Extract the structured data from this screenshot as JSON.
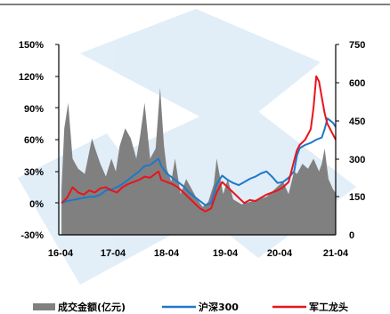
{
  "chart_data": {
    "type": "line",
    "title": "",
    "x_ticks": [
      "16-04",
      "17-04",
      "18-04",
      "19-04",
      "20-04",
      "21-04"
    ],
    "y_left": {
      "ticks": [
        "150%",
        "120%",
        "90%",
        "60%",
        "30%",
        "0%",
        "-30%"
      ],
      "range": [
        -30,
        150
      ],
      "unit": "%"
    },
    "y_right": {
      "ticks": [
        "750",
        "600",
        "450",
        "300",
        "150",
        "0"
      ],
      "range": [
        0,
        750
      ]
    },
    "grid": false,
    "legend_position": "bottom",
    "series": [
      {
        "name": "成交金额(亿元)",
        "kind": "area",
        "axis": "right",
        "color": "#808080",
        "x": [
          2016.3,
          2016.35,
          2016.42,
          2016.5,
          2016.6,
          2016.72,
          2016.85,
          2016.92,
          2017.0,
          2017.1,
          2017.2,
          2017.28,
          2017.35,
          2017.45,
          2017.55,
          2017.65,
          2017.72,
          2017.8,
          2017.9,
          2018.0,
          2018.08,
          2018.15,
          2018.2,
          2018.28,
          2018.35,
          2018.45,
          2018.55,
          2018.65,
          2018.75,
          2018.85,
          2018.95,
          2019.05,
          2019.1,
          2019.15,
          2019.22,
          2019.3,
          2019.4,
          2019.55,
          2019.7,
          2019.85,
          2020.0,
          2020.1,
          2020.2,
          2020.3,
          2020.4,
          2020.5,
          2020.55,
          2020.65,
          2020.75,
          2020.85,
          2020.95,
          2021.0,
          2021.05,
          2021.12,
          2021.2,
          2021.3
        ],
        "values": [
          180,
          420,
          520,
          300,
          260,
          240,
          380,
          330,
          280,
          230,
          300,
          250,
          350,
          420,
          380,
          300,
          390,
          520,
          300,
          340,
          580,
          350,
          260,
          210,
          300,
          160,
          220,
          180,
          140,
          110,
          130,
          200,
          300,
          240,
          160,
          220,
          140,
          120,
          130,
          140,
          150,
          170,
          190,
          210,
          160,
          250,
          240,
          280,
          260,
          300,
          250,
          280,
          340,
          220,
          180,
          150
        ]
      },
      {
        "name": "沪深300",
        "kind": "line",
        "axis": "left",
        "color": "#1f78c8",
        "x": [
          2016.3,
          2016.4,
          2016.5,
          2016.6,
          2016.7,
          2016.8,
          2016.9,
          2017.0,
          2017.1,
          2017.2,
          2017.3,
          2017.4,
          2017.5,
          2017.6,
          2017.7,
          2017.8,
          2017.9,
          2018.0,
          2018.05,
          2018.1,
          2018.2,
          2018.3,
          2018.4,
          2018.5,
          2018.6,
          2018.7,
          2018.8,
          2018.9,
          2019.0,
          2019.1,
          2019.2,
          2019.3,
          2019.4,
          2019.5,
          2019.6,
          2019.7,
          2019.8,
          2019.9,
          2020.0,
          2020.1,
          2020.2,
          2020.3,
          2020.4,
          2020.5,
          2020.55,
          2020.6,
          2020.7,
          2020.8,
          2020.9,
          2021.0,
          2021.05,
          2021.1,
          2021.15,
          2021.2,
          2021.25,
          2021.3
        ],
        "values": [
          0,
          2,
          3,
          4,
          5,
          6,
          6,
          8,
          12,
          13,
          15,
          18,
          22,
          26,
          30,
          35,
          36,
          40,
          42,
          35,
          28,
          24,
          20,
          16,
          10,
          6,
          2,
          -2,
          0,
          18,
          26,
          22,
          19,
          17,
          20,
          23,
          25,
          28,
          30,
          25,
          19,
          20,
          24,
          30,
          45,
          52,
          55,
          57,
          60,
          62,
          70,
          80,
          78,
          76,
          72,
          70
        ]
      },
      {
        "name": "军工龙头",
        "kind": "line",
        "axis": "left",
        "color": "#e8141c",
        "x": [
          2016.3,
          2016.4,
          2016.5,
          2016.6,
          2016.7,
          2016.8,
          2016.9,
          2017.0,
          2017.1,
          2017.2,
          2017.3,
          2017.4,
          2017.5,
          2017.6,
          2017.7,
          2017.8,
          2017.9,
          2018.0,
          2018.05,
          2018.1,
          2018.2,
          2018.3,
          2018.4,
          2018.5,
          2018.6,
          2018.7,
          2018.8,
          2018.9,
          2019.0,
          2019.1,
          2019.2,
          2019.3,
          2019.4,
          2019.5,
          2019.6,
          2019.7,
          2019.8,
          2019.9,
          2020.0,
          2020.1,
          2020.2,
          2020.3,
          2020.4,
          2020.5,
          2020.55,
          2020.6,
          2020.7,
          2020.8,
          2020.85,
          2020.9,
          2020.95,
          2021.0,
          2021.05,
          2021.1,
          2021.15,
          2021.2,
          2021.25,
          2021.3
        ],
        "values": [
          0,
          5,
          15,
          10,
          8,
          12,
          10,
          14,
          15,
          12,
          10,
          15,
          18,
          20,
          22,
          25,
          24,
          28,
          30,
          22,
          20,
          18,
          15,
          10,
          5,
          0,
          -5,
          -8,
          -5,
          10,
          20,
          15,
          10,
          5,
          0,
          3,
          2,
          5,
          8,
          10,
          12,
          15,
          20,
          40,
          50,
          55,
          60,
          70,
          90,
          120,
          115,
          100,
          85,
          75,
          70,
          65,
          60,
          58
        ]
      }
    ]
  }
}
